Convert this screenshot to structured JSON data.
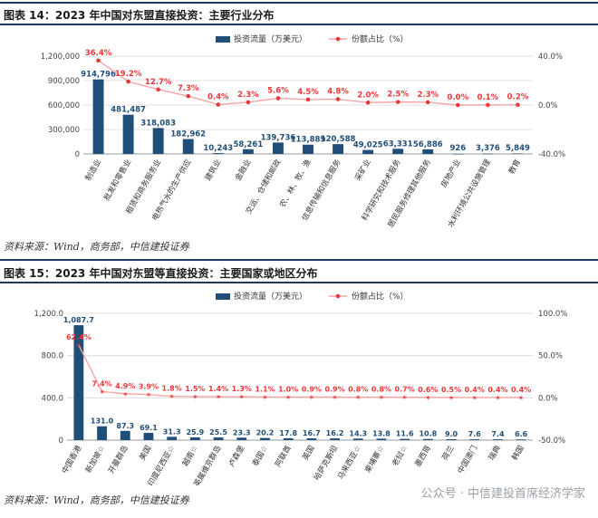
{
  "figure1": {
    "title": "图表 14：2023 年中国对东盟直接投资：主要行业分布",
    "source": "资料来源：Wind，商务部，中信建投证券"
  },
  "figure2": {
    "title": "图表 15：2023 年中国对东盟等直接投资：主要国家或地区分布",
    "source": "资料来源：Wind，商务部，中信建投证券"
  },
  "watermark": "公众号 · 中信建投首席经济学家",
  "colors": {
    "bar": "#1f4e79",
    "line": "#f4a6a6",
    "marker": "#e8383a",
    "label_bar": "#1f4e79",
    "label_line": "#e8383a"
  },
  "chart_data": [
    {
      "type": "bar",
      "categories": [
        "制造业",
        "批发和零售业",
        "租赁和商务服务业",
        "电热气水的生产供应",
        "建筑业",
        "金融业",
        "交运、仓储和邮政",
        "农、林、牧、渔",
        "信息传输和信息服务",
        "采矿业",
        "科学研究和技术服务",
        "居民服务修理其他服务",
        "房地产业",
        "水利环境公共设施管理",
        "教育"
      ],
      "series": [
        {
          "name": "投资流量（万美元）",
          "axis": "left",
          "values": [
            914796,
            481487,
            318083,
            182962,
            10243,
            58261,
            139736,
            113889,
            120588,
            49025,
            63331,
            56886,
            926,
            3376,
            5849
          ],
          "labels": [
            "914,796",
            "481,487",
            "318,083",
            "182,962",
            "10,243",
            "58,261",
            "139,736",
            "113,889",
            "120,588",
            "49,025",
            "63,331",
            "56,886",
            "926",
            "3,376",
            "5,849"
          ]
        },
        {
          "name": "份额占比（%）",
          "axis": "right",
          "type": "line",
          "values": [
            36.4,
            19.2,
            12.7,
            7.3,
            0.4,
            2.3,
            5.6,
            4.5,
            4.8,
            2.0,
            2.5,
            2.3,
            0.0,
            0.1,
            0.2
          ],
          "labels": [
            "36.4%",
            "19.2%",
            "12.7%",
            "7.3%",
            "0.4%",
            "2.3%",
            "5.6%",
            "4.5%",
            "4.8%",
            "2.0%",
            "2.5%",
            "2.3%",
            "0.0%",
            "0.1%",
            "0.2%"
          ]
        }
      ],
      "ylim_left": [
        0,
        1200000
      ],
      "yticks_left": [
        "0",
        "300,000",
        "600,000",
        "900,000",
        "1,200,000"
      ],
      "ylim_right": [
        -40,
        40
      ],
      "yticks_right": [
        "-40.0%",
        "0.0%",
        "40.0%"
      ],
      "grid": true,
      "legend": "top"
    },
    {
      "type": "bar",
      "categories": [
        "中国香港",
        "新加坡☆",
        "开曼群岛",
        "美国",
        "印度尼西亚☆",
        "越南☆",
        "英属维京群岛",
        "卢森堡",
        "泰国☆",
        "阿联酋",
        "英国",
        "哈萨克斯坦",
        "马来西亚☆",
        "柬埔寨☆",
        "老挝☆",
        "墨西哥",
        "荷兰",
        "中国澳门",
        "瑞典",
        "韩国"
      ],
      "series": [
        {
          "name": "投资流量（万美元）",
          "axis": "left",
          "values": [
            1087.7,
            131.0,
            87.3,
            69.1,
            31.3,
            25.9,
            25.5,
            23.3,
            20.2,
            17.8,
            16.7,
            16.2,
            14.3,
            13.8,
            11.6,
            10.8,
            9.0,
            7.6,
            7.4,
            6.6
          ],
          "labels": [
            "1,087.7",
            "131.0",
            "87.3",
            "69.1",
            "31.3",
            "25.9",
            "25.5",
            "23.3",
            "20.2",
            "17.8",
            "16.7",
            "16.2",
            "14.3",
            "13.8",
            "11.6",
            "10.8",
            "9.0",
            "7.6",
            "7.4",
            "6.6"
          ]
        },
        {
          "name": "份额占比（%）",
          "axis": "right",
          "type": "line",
          "values": [
            62.4,
            7.4,
            4.9,
            3.9,
            1.8,
            1.5,
            1.4,
            1.3,
            1.1,
            1.0,
            0.9,
            0.9,
            0.8,
            0.8,
            0.7,
            0.6,
            0.5,
            0.4,
            0.4,
            0.4
          ],
          "labels": [
            "62.4%",
            "7.4%",
            "4.9%",
            "3.9%",
            "1.8%",
            "1.5%",
            "1.4%",
            "1.3%",
            "1.1%",
            "1.0%",
            "0.9%",
            "0.9%",
            "0.8%",
            "0.8%",
            "0.7%",
            "0.6%",
            "0.5%",
            "0.4%",
            "0.4%",
            "0.4%"
          ]
        }
      ],
      "ylim_left": [
        0,
        1200
      ],
      "yticks_left": [
        "0",
        "400.0",
        "800.0",
        "1,200.0"
      ],
      "ylim_right": [
        -50,
        100
      ],
      "yticks_right": [
        "-50.0%",
        "0.0%",
        "50.0%",
        "100.0%"
      ],
      "grid": true,
      "legend": "top"
    }
  ]
}
